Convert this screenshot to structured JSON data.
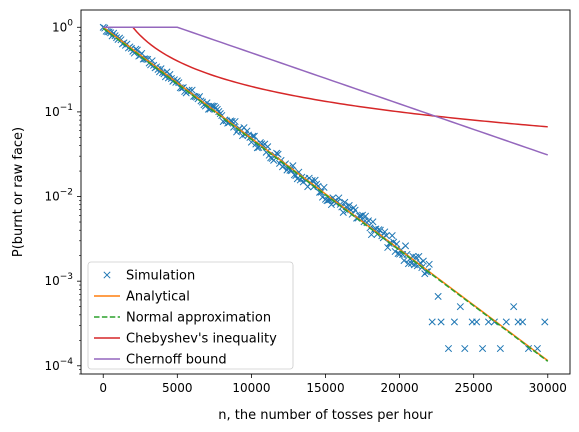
{
  "chart_data": {
    "type": "line",
    "title": "",
    "xlabel": "n, the number of tosses per hour",
    "ylabel": "P(burnt or raw face)",
    "xlim": [
      -1500,
      31500
    ],
    "ylim": [
      8e-05,
      1.6
    ],
    "yscale": "log",
    "x_ticks": [
      0,
      5000,
      10000,
      15000,
      20000,
      25000,
      30000
    ],
    "x_tick_labels": [
      "0",
      "5000",
      "10000",
      "15000",
      "20000",
      "25000",
      "30000"
    ],
    "y_ticks": [
      0.0001,
      0.001,
      0.01,
      0.1,
      1
    ],
    "y_tick_labels": [
      "10",
      "10",
      "10",
      "10",
      "10"
    ],
    "y_tick_exponents": [
      "−4",
      "−3",
      "−2",
      "−1",
      "0"
    ],
    "grid": false,
    "legend_position": "lower-left",
    "series": [
      {
        "name": "Simulation",
        "style": "markers",
        "marker": "x",
        "color": "#1f77b4",
        "model": "exp",
        "x_start": 0,
        "x_end": 29800,
        "x_step": 100,
        "y_at_0": 1.0,
        "decay_per_1000": 0.3018,
        "outliers": [
          [
            22200,
            0.00033
          ],
          [
            22600,
            0.00066
          ],
          [
            22800,
            0.00033
          ],
          [
            23300,
            0.00016
          ],
          [
            23700,
            0.00033
          ],
          [
            24100,
            0.0005
          ],
          [
            24400,
            0.00016
          ],
          [
            24900,
            0.00033
          ],
          [
            25200,
            0.00033
          ],
          [
            25600,
            0.00016
          ],
          [
            26000,
            0.00033
          ],
          [
            26400,
            0.00033
          ],
          [
            26800,
            0.00016
          ],
          [
            27200,
            0.00033
          ],
          [
            27700,
            0.0005
          ],
          [
            28000,
            0.00033
          ],
          [
            28300,
            0.00033
          ],
          [
            28700,
            0.00016
          ],
          [
            29300,
            0.00016
          ],
          [
            29800,
            0.00033
          ]
        ]
      },
      {
        "name": "Analytical",
        "style": "solid",
        "color": "#ff7f0e",
        "model": "exp",
        "y_at_0": 1.0,
        "y_at_30000": 0.000115
      },
      {
        "name": "Normal approximation",
        "style": "dashed",
        "color": "#2ca02c",
        "model": "exp",
        "y_at_0": 0.97,
        "y_at_30000": 0.000113
      },
      {
        "name": "Chebyshev's inequality",
        "style": "solid",
        "color": "#d62728",
        "model": "reciprocal",
        "k": 2000,
        "x_start": 2000,
        "x_end": 30000,
        "cap": 1.0
      },
      {
        "name": "Chernoff bound",
        "style": "solid",
        "color": "#9467bd",
        "model": "capped-exp",
        "x_start": 0,
        "x_end": 30000,
        "x_break": 5000,
        "y_at_break": 1.0,
        "y_at_30000": 0.031
      }
    ]
  }
}
